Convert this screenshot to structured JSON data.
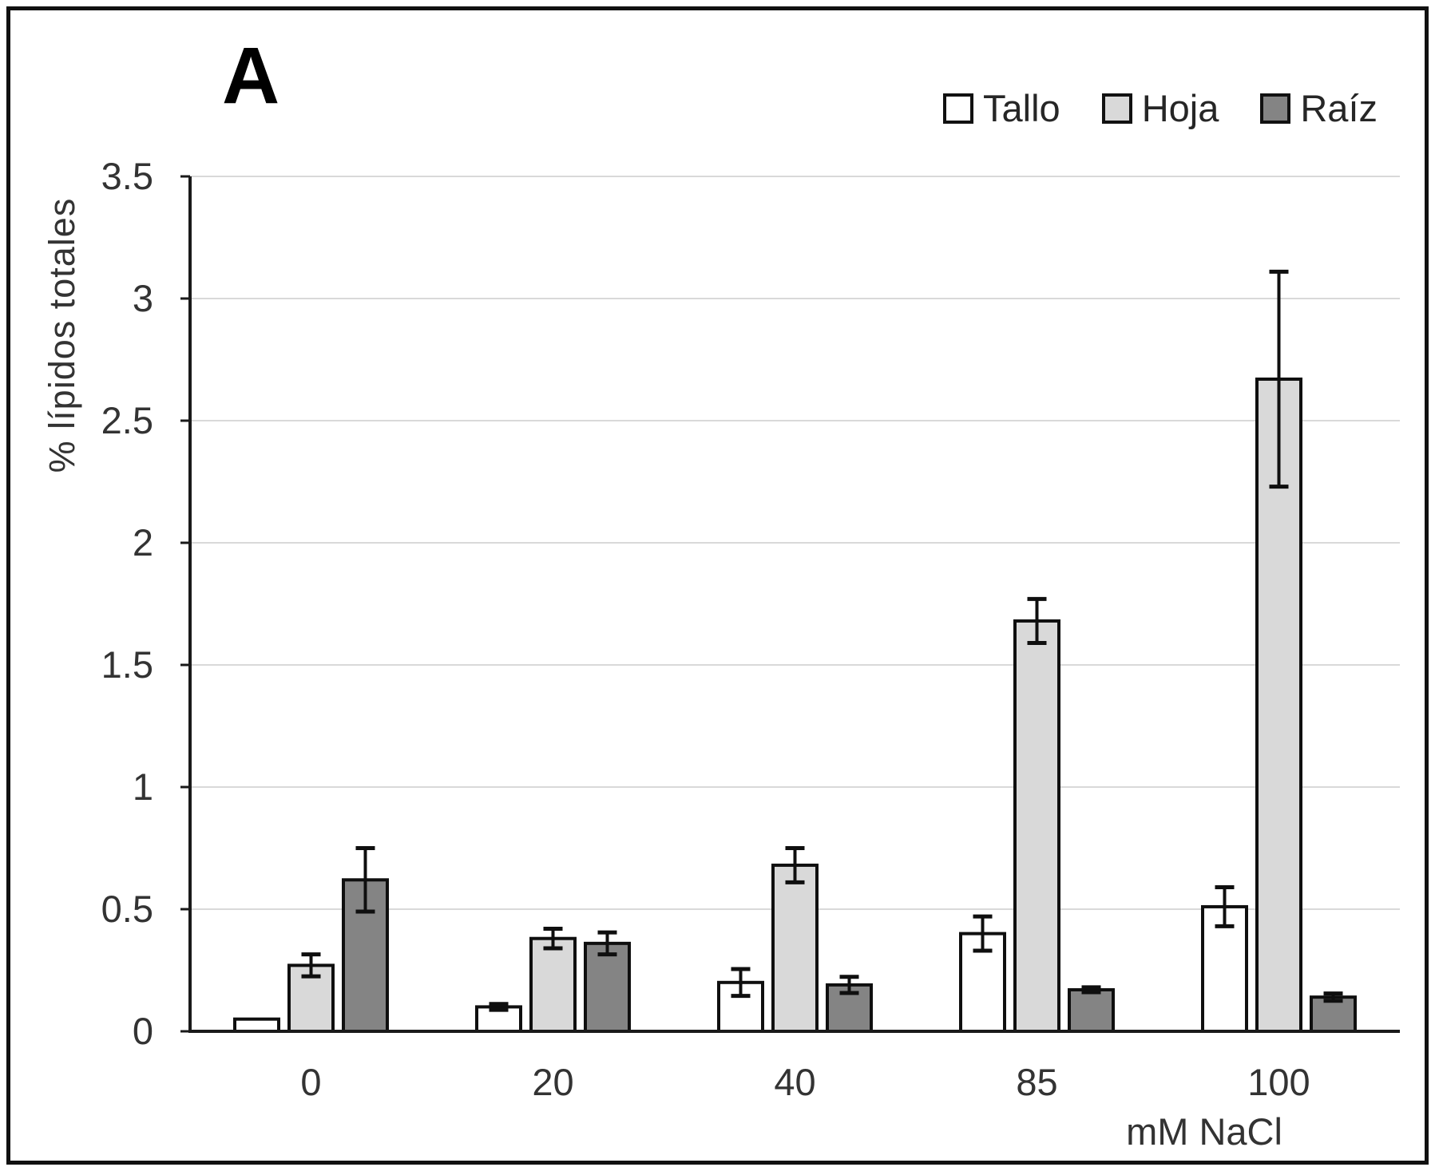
{
  "figure": {
    "panel_label": "A"
  },
  "colors": {
    "frame_border": "#111111",
    "axis": "#1a1a1a",
    "gridline": "#d9d9d9",
    "bar_border": "#0f0f0f",
    "error_bar": "#0f0f0f",
    "tick_text": "#333333"
  },
  "chart_data": {
    "type": "bar",
    "title": "",
    "panel": "A",
    "categories": [
      "0",
      "20",
      "40",
      "85",
      "100"
    ],
    "series": [
      {
        "name": "Tallo",
        "fill": "#ffffff",
        "values": [
          0.05,
          0.1,
          0.2,
          0.4,
          0.51
        ],
        "errors": [
          0,
          0.012,
          0.055,
          0.07,
          0.08
        ]
      },
      {
        "name": "Hoja",
        "fill": "#d9d9d9",
        "values": [
          0.27,
          0.38,
          0.68,
          1.68,
          2.67
        ],
        "errors": [
          0.045,
          0.04,
          0.07,
          0.09,
          0.44
        ]
      },
      {
        "name": "Raíz",
        "fill": "#848484",
        "values": [
          0.62,
          0.36,
          0.19,
          0.17,
          0.14
        ],
        "errors": [
          0.13,
          0.045,
          0.033,
          0.01,
          0.015
        ]
      }
    ],
    "xlabel": "mM NaCl",
    "ylabel": "% lípidos totales",
    "ylim": [
      0,
      3.5
    ],
    "y_tick_step": 0.5,
    "y_ticks": [
      "0",
      "0.5",
      "1",
      "1.5",
      "2",
      "2.5",
      "3",
      "3.5"
    ],
    "grid": true,
    "error_bars": true,
    "legend_position": "top-right"
  }
}
